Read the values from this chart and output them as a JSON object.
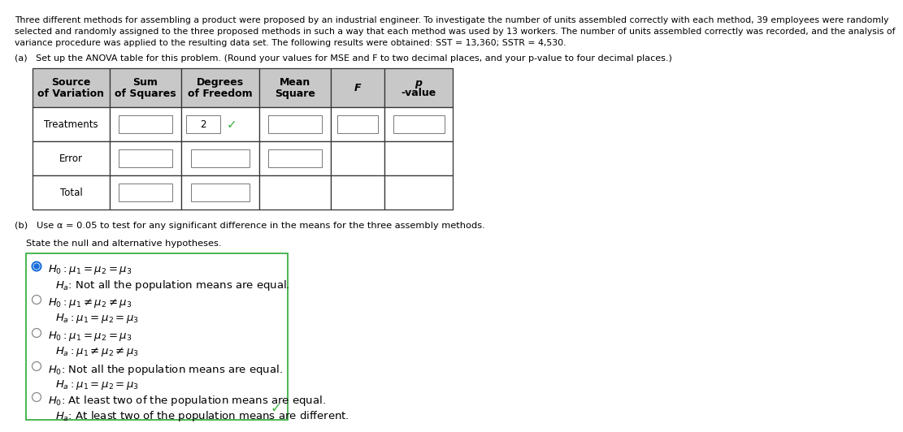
{
  "para_lines": [
    "Three different methods for assembling a product were proposed by an industrial engineer. To investigate the number of units assembled correctly with each method, 39 employees were randomly",
    "selected and randomly assigned to the three proposed methods in such a way that each method was used by 13 workers. The number of units assembled correctly was recorded, and the analysis of",
    "variance procedure was applied to the resulting data set. The following results were obtained: SST = 13,360; SSTR = 4,530."
  ],
  "part_a_label": "(a)   Set up the ANOVA table for this problem. (Round your values for MSE and F to two decimal places, and your p-value to four decimal places.)",
  "table_headers_line1": [
    "Source",
    "Sum",
    "Degrees",
    "Mean",
    "",
    ""
  ],
  "table_headers_line2": [
    "of Variation",
    "of Squares",
    "of Freedom",
    "Square",
    "F",
    "p-value"
  ],
  "part_b_label": "(b)   Use α = 0.05 to test for any significant difference in the means for the three assembly methods.",
  "state_label": "State the null and alternative hypotheses.",
  "options": [
    {
      "selected": true,
      "line1_math": "H_0: \\mu_1 = \\mu_2 = \\mu_3",
      "line2_text": "$H_a$: Not all the population means are equal."
    },
    {
      "selected": false,
      "line1_math": "H_0: \\mu_1 \\neq \\mu_2 \\neq \\mu_3",
      "line2_math": "H_a: \\mu_1 = \\mu_2 = \\mu_3"
    },
    {
      "selected": false,
      "line1_math": "H_0: \\mu_1 = \\mu_2 = \\mu_3",
      "line2_math": "H_a: \\mu_1 \\neq \\mu_2 \\neq \\mu_3"
    },
    {
      "selected": false,
      "line1_text": "$H_0$: Not all the population means are equal.",
      "line2_math": "H_a: \\mu_1 = \\mu_2 = \\mu_3"
    },
    {
      "selected": false,
      "line1_text": "$H_0$: At least two of the population means are equal.",
      "line2_text": "$H_a$: At least two of the population means are different."
    }
  ],
  "checkmark_color": "#3cb043",
  "bg_color": "#ffffff",
  "table_header_bg": "#c8c8c8",
  "table_border_color": "#333333",
  "input_box_color": "#ffffff",
  "text_color": "#000000",
  "selected_circle_fill": "#1a6fdb",
  "selected_circle_border": "#1a6fdb",
  "unsel_circle_border": "#888888",
  "options_box_border": "#3cb043"
}
